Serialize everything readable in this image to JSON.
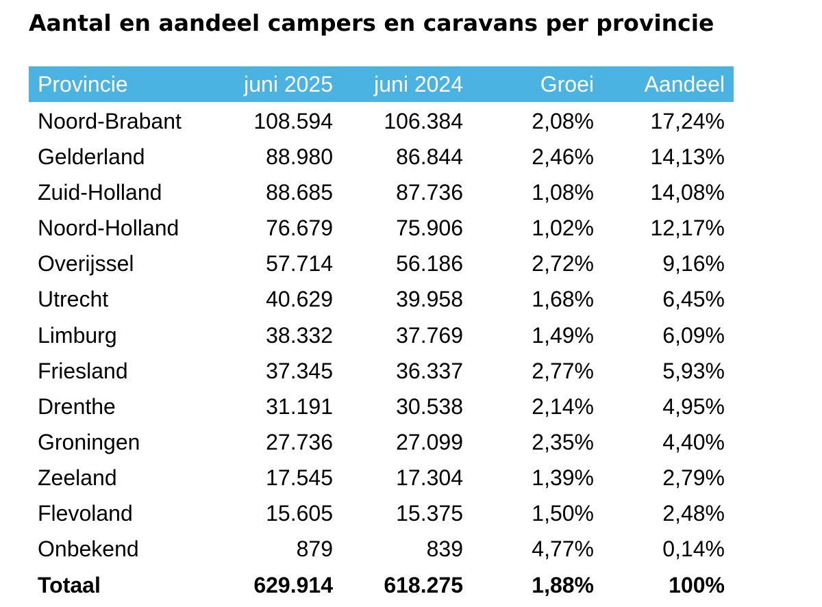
{
  "chart_data": {
    "type": "table",
    "title": "Aantal en aandeel campers en caravans per provincie",
    "header_color": "#4bb3e2",
    "columns": [
      "Provincie",
      "juni 2025",
      "juni 2024",
      "Groei",
      "Aandeel"
    ],
    "rows": [
      [
        "Noord-Brabant",
        "108.594",
        "106.384",
        "2,08%",
        "17,24%"
      ],
      [
        "Gelderland",
        "88.980",
        "86.844",
        "2,46%",
        "14,13%"
      ],
      [
        "Zuid-Holland",
        "88.685",
        "87.736",
        "1,08%",
        "14,08%"
      ],
      [
        "Noord-Holland",
        "76.679",
        "75.906",
        "1,02%",
        "12,17%"
      ],
      [
        "Overijssel",
        "57.714",
        "56.186",
        "2,72%",
        "9,16%"
      ],
      [
        "Utrecht",
        "40.629",
        "39.958",
        "1,68%",
        "6,45%"
      ],
      [
        "Limburg",
        "38.332",
        "37.769",
        "1,49%",
        "6,09%"
      ],
      [
        "Friesland",
        "37.345",
        "36.337",
        "2,77%",
        "5,93%"
      ],
      [
        "Drenthe",
        "31.191",
        "30.538",
        "2,14%",
        "4,95%"
      ],
      [
        "Groningen",
        "27.736",
        "27.099",
        "2,35%",
        "4,40%"
      ],
      [
        "Zeeland",
        "17.545",
        "17.304",
        "1,39%",
        "2,79%"
      ],
      [
        "Flevoland",
        "15.605",
        "15.375",
        "1,50%",
        "2,48%"
      ],
      [
        "Onbekend",
        "879",
        "839",
        "4,77%",
        "0,14%"
      ]
    ],
    "total": [
      "Totaal",
      "629.914",
      "618.275",
      "1,88%",
      "100%"
    ]
  }
}
